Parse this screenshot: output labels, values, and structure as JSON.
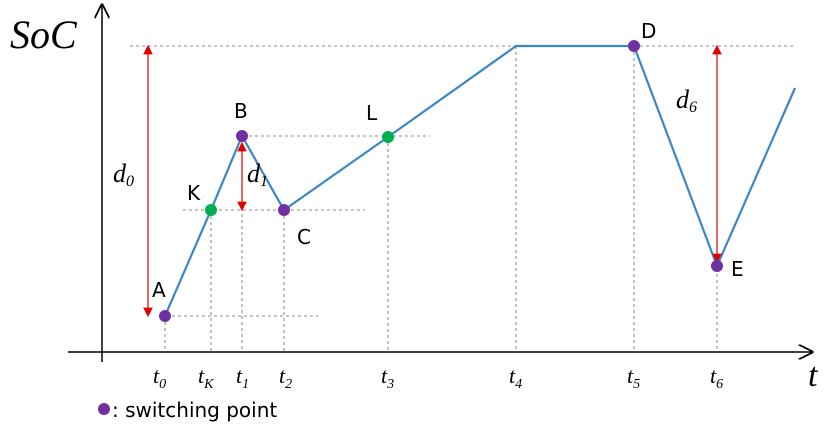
{
  "axes": {
    "y_label": "SoC",
    "x_label": "t"
  },
  "points": [
    {
      "label": "A"
    },
    {
      "label": "K"
    },
    {
      "label": "B"
    },
    {
      "label": "C"
    },
    {
      "label": "L"
    },
    {
      "label": "D"
    },
    {
      "label": "E"
    }
  ],
  "time_labels": [
    {
      "base": "t",
      "sub": "0"
    },
    {
      "base": "t",
      "sub": "K"
    },
    {
      "base": "t",
      "sub": "1"
    },
    {
      "base": "t",
      "sub": "2"
    },
    {
      "base": "t",
      "sub": "3"
    },
    {
      "base": "t",
      "sub": "4"
    },
    {
      "base": "t",
      "sub": "5"
    },
    {
      "base": "t",
      "sub": "6"
    }
  ],
  "distances": [
    {
      "base": "d",
      "sub": "0"
    },
    {
      "base": "d",
      "sub": "1"
    },
    {
      "base": "d",
      "sub": "6"
    }
  ],
  "legend": {
    "text": ": switching point"
  }
}
